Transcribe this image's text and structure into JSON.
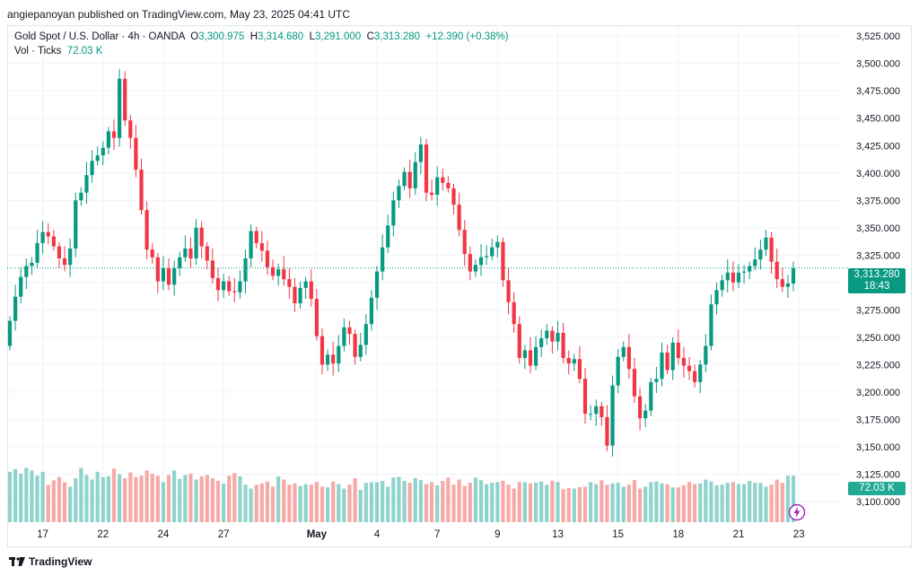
{
  "header": {
    "publisher": "angiepanoyan published on TradingView.com, May 23, 2025 04:41 UTC"
  },
  "legend": {
    "symbol": "Gold Spot / U.S. Dollar · 4h · OANDA",
    "open_label": "O",
    "open": "3,300.975",
    "high_label": "H",
    "high": "3,314.680",
    "low_label": "L",
    "low": "3,291.000",
    "close_label": "C",
    "close": "3,313.280",
    "change": "+12.390 (+0.38%)",
    "vol_label": "Vol · Ticks",
    "vol_value": "72.03 K"
  },
  "price_tag": {
    "price": "3,313.280",
    "countdown": "18:43",
    "volume": "72.03 K"
  },
  "footer": {
    "brand": "TradingView"
  },
  "colors": {
    "up": "#089981",
    "down": "#f23645",
    "vol_up": "#8fd3cd",
    "vol_down": "#f7a9a7",
    "grid": "#f0f3fa"
  },
  "chart_data": {
    "type": "candlestick",
    "symbol": "Gold Spot / U.S. Dollar",
    "interval": "4h",
    "ylim": [
      3086,
      3535
    ],
    "y_ticks": [
      "3,525.000",
      "3,500.000",
      "3,475.000",
      "3,450.000",
      "3,425.000",
      "3,400.000",
      "3,375.000",
      "3,350.000",
      "3,325.000",
      "3,300.000",
      "3,275.000",
      "3,250.000",
      "3,225.000",
      "3,200.000",
      "3,175.000",
      "3,150.000",
      "3,125.000",
      "3,100.000"
    ],
    "y_tick_values": [
      3525,
      3500,
      3475,
      3450,
      3425,
      3400,
      3375,
      3350,
      3325,
      3300,
      3275,
      3250,
      3225,
      3200,
      3175,
      3150,
      3125,
      3100
    ],
    "x_ticks": [
      {
        "label": "17",
        "bar": 6,
        "bold": false
      },
      {
        "label": "22",
        "bar": 17,
        "bold": false
      },
      {
        "label": "24",
        "bar": 28,
        "bold": false
      },
      {
        "label": "27",
        "bar": 39,
        "bold": false
      },
      {
        "label": "May",
        "bar": 56,
        "bold": true
      },
      {
        "label": "4",
        "bar": 67,
        "bold": false
      },
      {
        "label": "7",
        "bar": 78,
        "bold": false
      },
      {
        "label": "9",
        "bar": 89,
        "bold": false
      },
      {
        "label": "13",
        "bar": 100,
        "bold": false
      },
      {
        "label": "15",
        "bar": 111,
        "bold": false
      },
      {
        "label": "18",
        "bar": 122,
        "bold": false
      },
      {
        "label": "21",
        "bar": 133,
        "bold": false
      },
      {
        "label": "23",
        "bar": 144,
        "bold": false
      }
    ],
    "last_price": 3313.28,
    "closes": [
      3265,
      3287,
      3305,
      3315,
      3318,
      3336,
      3346,
      3342,
      3333,
      3322,
      3316,
      3331,
      3375,
      3382,
      3398,
      3411,
      3416,
      3423,
      3438,
      3432,
      3486,
      3448,
      3432,
      3403,
      3366,
      3330,
      3323,
      3301,
      3313,
      3298,
      3313,
      3323,
      3331,
      3322,
      3350,
      3333,
      3320,
      3304,
      3293,
      3301,
      3292,
      3291,
      3301,
      3322,
      3347,
      3336,
      3329,
      3314,
      3306,
      3312,
      3303,
      3296,
      3281,
      3295,
      3301,
      3285,
      3251,
      3225,
      3234,
      3226,
      3242,
      3259,
      3253,
      3232,
      3243,
      3262,
      3286,
      3310,
      3332,
      3352,
      3375,
      3388,
      3401,
      3386,
      3410,
      3426,
      3382,
      3380,
      3396,
      3391,
      3386,
      3371,
      3348,
      3326,
      3310,
      3316,
      3323,
      3324,
      3332,
      3337,
      3302,
      3282,
      3262,
      3231,
      3238,
      3224,
      3241,
      3249,
      3256,
      3246,
      3254,
      3231,
      3226,
      3230,
      3212,
      3180,
      3180,
      3187,
      3177,
      3151,
      3206,
      3232,
      3241,
      3221,
      3196,
      3176,
      3183,
      3209,
      3212,
      3236,
      3220,
      3245,
      3231,
      3224,
      3219,
      3209,
      3225,
      3242,
      3280,
      3293,
      3302,
      3309,
      3300,
      3309,
      3310,
      3315,
      3321,
      3330,
      3341,
      3319,
      3303,
      3296,
      3299,
      3313
    ],
    "volumes": [
      78,
      82,
      75,
      84,
      80,
      72,
      78,
      58,
      65,
      70,
      62,
      55,
      68,
      84,
      73,
      66,
      78,
      70,
      71,
      83,
      74,
      68,
      77,
      70,
      72,
      80,
      75,
      72,
      62,
      73,
      80,
      67,
      73,
      75,
      66,
      71,
      73,
      68,
      64,
      60,
      72,
      76,
      71,
      58,
      52,
      58,
      60,
      63,
      55,
      71,
      66,
      58,
      60,
      56,
      59,
      58,
      62,
      55,
      54,
      63,
      59,
      52,
      58,
      68,
      50,
      61,
      62,
      62,
      64,
      55,
      69,
      70,
      64,
      61,
      68,
      65,
      59,
      62,
      57,
      64,
      69,
      58,
      66,
      56,
      61,
      69,
      65,
      59,
      61,
      62,
      64,
      58,
      52,
      62,
      62,
      60,
      61,
      63,
      58,
      64,
      62,
      51,
      53,
      52,
      54,
      55,
      62,
      59,
      65,
      58,
      60,
      61,
      55,
      58,
      65,
      52,
      55,
      62,
      63,
      60,
      59,
      54,
      54,
      57,
      62,
      59,
      60,
      66,
      63,
      57,
      58,
      61,
      62,
      59,
      59,
      64,
      61,
      61,
      55,
      58,
      66,
      61,
      72,
      72
    ]
  }
}
